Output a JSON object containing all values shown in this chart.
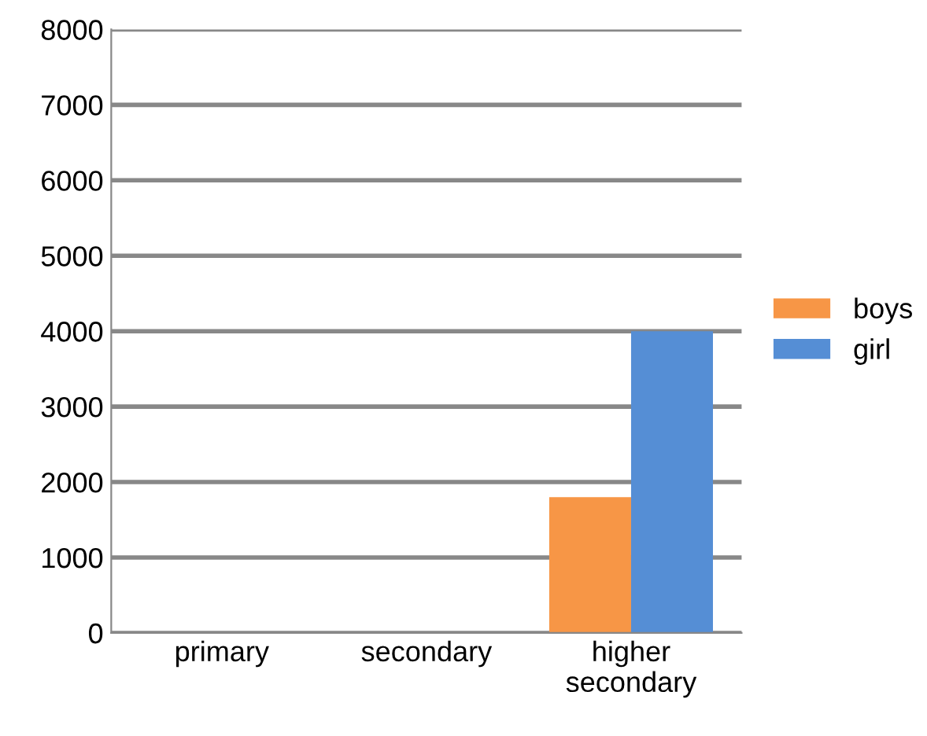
{
  "chart_data": {
    "type": "bar",
    "categories": [
      "primary",
      "secondary",
      "higher\nsecondary"
    ],
    "series": [
      {
        "name": "boys",
        "color": "#f79646",
        "values": [
          0,
          0,
          1800
        ]
      },
      {
        "name": "girl",
        "color": "#558ed5",
        "values": [
          0,
          0,
          4000
        ]
      }
    ],
    "ylim": [
      0,
      8000
    ],
    "yticks": [
      0,
      1000,
      2000,
      3000,
      4000,
      5000,
      6000,
      7000,
      8000
    ],
    "grid": "y",
    "legend": "right"
  }
}
